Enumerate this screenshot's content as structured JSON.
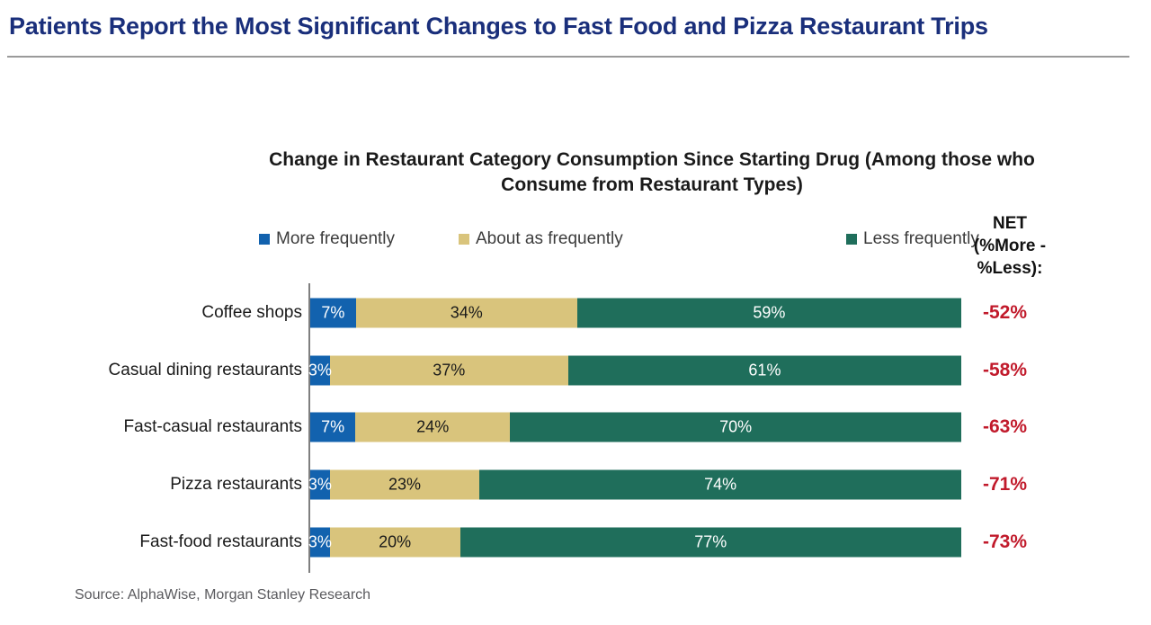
{
  "page": {
    "title": "Patients Report the Most Significant Changes to Fast Food and Pizza Restaurant Trips",
    "source": "Source: AlphaWise, Morgan Stanley Research"
  },
  "colors": {
    "title_navy": "#1A2F7B",
    "net_red": "#C11A2B",
    "axis_gray": "#7F7F7F",
    "rule_gray": "#9A9A9A",
    "source_gray": "#5A5A5E"
  },
  "chart_data": {
    "type": "bar",
    "orientation": "horizontal-stacked",
    "title": "Change in Restaurant Category Consumption Since Starting Drug (Among those who Consume from Restaurant Types)",
    "categories": [
      "Coffee shops",
      "Casual dining restaurants",
      "Fast-casual restaurants",
      "Pizza restaurants",
      "Fast-food restaurants"
    ],
    "series": [
      {
        "name": "More frequently",
        "color": "#1262AE",
        "label_color": "#FFFFFF",
        "values": [
          7,
          3,
          7,
          3,
          3
        ]
      },
      {
        "name": "About as frequently",
        "color": "#D9C47C",
        "label_color": "#1A1A1A",
        "values": [
          34,
          37,
          24,
          23,
          20
        ]
      },
      {
        "name": "Less frequently",
        "color": "#1F6E5B",
        "label_color": "#FFFFFF",
        "values": [
          59,
          61,
          70,
          74,
          77
        ]
      }
    ],
    "net_column": {
      "header": "NET\n(%More -\n%Less):",
      "values": [
        "-52%",
        "-58%",
        "-63%",
        "-71%",
        "-73%"
      ]
    },
    "value_suffix": "%",
    "xlim": [
      0,
      100
    ],
    "legend_position": "top",
    "grid": false
  }
}
